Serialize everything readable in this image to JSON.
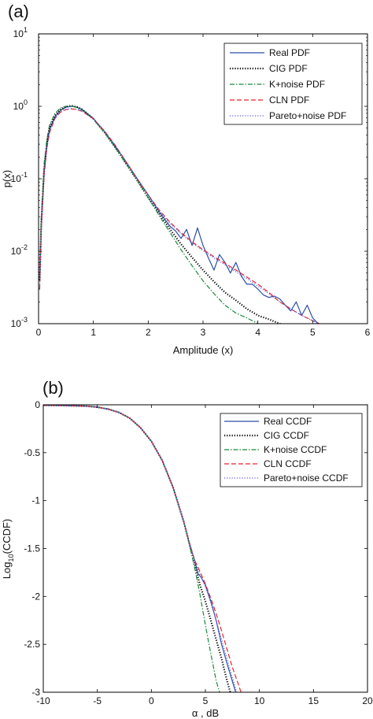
{
  "colors": {
    "real": "#2b4ea8",
    "cig": "#000000",
    "knoise": "#1a8a3a",
    "cln": "#e8232a",
    "pareto": "#5a5ee0"
  },
  "chart_data": [
    {
      "type": "line",
      "panel_label": "(a)",
      "xlabel": "Amplitude (x)",
      "ylabel": "p(x)",
      "xlim": [
        0,
        6
      ],
      "ylim": [
        0.001,
        10
      ],
      "yscale": "log",
      "grid": false,
      "legend_position": "top-right",
      "x_ticks": [
        0,
        1,
        2,
        3,
        4,
        5,
        6
      ],
      "x_tick_labels": [
        "0",
        "1",
        "2",
        "3",
        "4",
        "5",
        "6"
      ],
      "y_ticks": [
        0.001,
        0.01,
        0.1,
        1,
        10
      ],
      "y_tick_labels": [
        {
          "base": "10",
          "exp": "-3"
        },
        {
          "base": "10",
          "exp": "-2"
        },
        {
          "base": "10",
          "exp": "-1"
        },
        {
          "base": "10",
          "exp": "0"
        },
        {
          "base": "10",
          "exp": "1"
        }
      ],
      "series": [
        {
          "name": "Real PDF",
          "color": "#2b4ea8",
          "dash": "solid",
          "x": [
            0.02,
            0.05,
            0.1,
            0.15,
            0.2,
            0.3,
            0.4,
            0.5,
            0.6,
            0.7,
            0.8,
            1.0,
            1.2,
            1.4,
            1.6,
            1.8,
            2.0,
            2.2,
            2.4,
            2.5,
            2.6,
            2.7,
            2.8,
            2.9,
            3.0,
            3.1,
            3.2,
            3.3,
            3.4,
            3.5,
            3.6,
            3.7,
            3.8,
            3.9,
            4.0,
            4.1,
            4.2,
            4.3,
            4.4,
            4.5,
            4.6,
            4.7,
            4.8,
            4.9,
            5.0,
            5.1
          ],
          "y": [
            0.004,
            0.025,
            0.13,
            0.3,
            0.48,
            0.72,
            0.88,
            0.97,
            1.0,
            0.97,
            0.9,
            0.68,
            0.45,
            0.28,
            0.17,
            0.1,
            0.06,
            0.035,
            0.022,
            0.019,
            0.015,
            0.02,
            0.012,
            0.021,
            0.012,
            0.008,
            0.0055,
            0.009,
            0.007,
            0.005,
            0.007,
            0.0045,
            0.0035,
            0.0035,
            0.003,
            0.0025,
            0.0023,
            0.0024,
            0.0022,
            0.0018,
            0.0015,
            0.002,
            0.0013,
            0.0018,
            0.0012,
            0.001
          ]
        },
        {
          "name": "CIG PDF",
          "color": "#000000",
          "dash": "dotted",
          "x": [
            0.02,
            0.05,
            0.1,
            0.15,
            0.2,
            0.3,
            0.4,
            0.5,
            0.6,
            0.7,
            0.8,
            1.0,
            1.2,
            1.4,
            1.6,
            1.8,
            2.0,
            2.2,
            2.4,
            2.6,
            2.8,
            3.0,
            3.2,
            3.4,
            3.6,
            3.8,
            4.0,
            4.2,
            4.4,
            4.5
          ],
          "y": [
            0.004,
            0.025,
            0.13,
            0.3,
            0.5,
            0.75,
            0.9,
            0.99,
            1.02,
            0.98,
            0.9,
            0.67,
            0.44,
            0.27,
            0.16,
            0.095,
            0.055,
            0.033,
            0.02,
            0.0125,
            0.0082,
            0.0055,
            0.0038,
            0.0027,
            0.0021,
            0.0016,
            0.0013,
            0.00115,
            0.001,
            0.00095
          ]
        },
        {
          "name": "K+noise PDF",
          "color": "#1a8a3a",
          "dash": "dashdot",
          "x": [
            0.02,
            0.05,
            0.1,
            0.15,
            0.2,
            0.3,
            0.4,
            0.5,
            0.6,
            0.7,
            0.8,
            1.0,
            1.2,
            1.4,
            1.6,
            1.8,
            2.0,
            2.2,
            2.4,
            2.6,
            2.8,
            3.0,
            3.2,
            3.4,
            3.6,
            3.8,
            4.0,
            4.05
          ],
          "y": [
            0.005,
            0.03,
            0.16,
            0.35,
            0.55,
            0.8,
            0.95,
            1.0,
            1.01,
            0.96,
            0.88,
            0.66,
            0.44,
            0.27,
            0.16,
            0.095,
            0.055,
            0.031,
            0.018,
            0.0105,
            0.0063,
            0.0039,
            0.0026,
            0.0018,
            0.0014,
            0.0012,
            0.001,
            0.00095
          ]
        },
        {
          "name": "CLN PDF",
          "color": "#e8232a",
          "dash": "dashed",
          "x": [
            0.02,
            0.05,
            0.1,
            0.15,
            0.2,
            0.3,
            0.4,
            0.5,
            0.6,
            0.7,
            0.8,
            1.0,
            1.2,
            1.4,
            1.6,
            1.8,
            2.0,
            2.2,
            2.4,
            2.6,
            2.8,
            3.0,
            3.2,
            3.4,
            3.6,
            3.8,
            4.0,
            4.2,
            4.4,
            4.6,
            4.8,
            5.0,
            5.15
          ],
          "y": [
            0.003,
            0.02,
            0.11,
            0.26,
            0.43,
            0.68,
            0.83,
            0.9,
            0.92,
            0.9,
            0.85,
            0.67,
            0.46,
            0.29,
            0.17,
            0.1,
            0.06,
            0.037,
            0.025,
            0.018,
            0.0135,
            0.0105,
            0.0084,
            0.0068,
            0.0055,
            0.0044,
            0.0035,
            0.0027,
            0.002,
            0.0016,
            0.0013,
            0.0011,
            0.00098
          ]
        },
        {
          "name": "Pareto+noise PDF",
          "color": "#5a5ee0",
          "dash": "dotted",
          "x": [
            0.02,
            0.05,
            0.1,
            0.15,
            0.2,
            0.3,
            0.4,
            0.5,
            0.6,
            0.7,
            0.8,
            1.0,
            1.2,
            1.4,
            1.6,
            1.8,
            2.0,
            2.2,
            2.4,
            2.6,
            2.8,
            3.0,
            3.2,
            3.4,
            3.6,
            3.8,
            4.0,
            4.2,
            4.4,
            4.6,
            4.8,
            5.0,
            5.1
          ],
          "y": [
            0.003,
            0.02,
            0.11,
            0.27,
            0.44,
            0.69,
            0.84,
            0.91,
            0.93,
            0.91,
            0.86,
            0.67,
            0.46,
            0.29,
            0.17,
            0.1,
            0.06,
            0.036,
            0.024,
            0.0175,
            0.013,
            0.0102,
            0.0081,
            0.0065,
            0.0052,
            0.0042,
            0.0033,
            0.0026,
            0.002,
            0.0016,
            0.0013,
            0.0011,
            0.001
          ]
        }
      ]
    },
    {
      "type": "line",
      "panel_label": "(b)",
      "xlabel": "α , dB",
      "ylabel_base": "Log",
      "ylabel_sub": "10",
      "ylabel_rest": "(CCDF)",
      "xlim": [
        -10,
        20
      ],
      "ylim": [
        -3,
        0
      ],
      "grid": false,
      "legend_position": "top-right",
      "x_ticks": [
        -10,
        -5,
        0,
        5,
        10,
        15,
        20
      ],
      "x_tick_labels": [
        "-10",
        "-5",
        "0",
        "5",
        "10",
        "15",
        "20"
      ],
      "y_ticks": [
        0,
        -0.5,
        -1,
        -1.5,
        -2,
        -2.5,
        -3
      ],
      "y_tick_labels": [
        "0",
        "-0.5",
        "-1",
        "-1.5",
        "-2",
        "-2.5",
        "-3"
      ],
      "series": [
        {
          "name": "Real CCDF",
          "color": "#2b4ea8",
          "dash": "solid",
          "x": [
            -10,
            -8,
            -6,
            -5,
            -4,
            -3,
            -2,
            -1,
            0,
            1,
            2,
            3,
            3.5,
            4,
            4.3,
            4.6,
            5,
            5.5,
            6,
            6.5,
            7,
            7.4,
            7.8
          ],
          "y": [
            -0.005,
            -0.008,
            -0.015,
            -0.025,
            -0.045,
            -0.08,
            -0.14,
            -0.24,
            -0.38,
            -0.58,
            -0.86,
            -1.22,
            -1.44,
            -1.62,
            -1.76,
            -1.8,
            -1.88,
            -2.05,
            -2.25,
            -2.5,
            -2.7,
            -2.85,
            -3.0
          ]
        },
        {
          "name": "CIG CCDF",
          "color": "#000000",
          "dash": "dotted",
          "x": [
            -10,
            -8,
            -6,
            -5,
            -4,
            -3,
            -2,
            -1,
            0,
            1,
            2,
            3,
            3.5,
            4,
            4.5,
            5,
            5.5,
            6,
            6.5,
            7,
            7.3
          ],
          "y": [
            -0.005,
            -0.008,
            -0.015,
            -0.025,
            -0.045,
            -0.08,
            -0.14,
            -0.24,
            -0.38,
            -0.58,
            -0.86,
            -1.22,
            -1.44,
            -1.66,
            -1.88,
            -2.05,
            -2.25,
            -2.45,
            -2.65,
            -2.88,
            -3.0
          ]
        },
        {
          "name": "K+noise CCDF",
          "color": "#1a8a3a",
          "dash": "dashdot",
          "x": [
            -10,
            -8,
            -6,
            -5,
            -4,
            -3,
            -2,
            -1,
            0,
            1,
            2,
            3,
            3.5,
            4,
            4.5,
            5,
            5.5,
            6,
            6.3
          ],
          "y": [
            -0.004,
            -0.007,
            -0.013,
            -0.022,
            -0.042,
            -0.078,
            -0.14,
            -0.24,
            -0.38,
            -0.58,
            -0.86,
            -1.22,
            -1.45,
            -1.7,
            -1.98,
            -2.3,
            -2.6,
            -2.88,
            -3.0
          ]
        },
        {
          "name": "CLN CCDF",
          "color": "#e8232a",
          "dash": "dashed",
          "x": [
            -10,
            -8,
            -6,
            -5,
            -4,
            -3,
            -2,
            -1,
            0,
            1,
            2,
            3,
            3.5,
            4,
            4.5,
            5,
            5.5,
            6,
            6.5,
            7,
            7.5,
            8,
            8.3
          ],
          "y": [
            -0.005,
            -0.008,
            -0.015,
            -0.025,
            -0.045,
            -0.08,
            -0.14,
            -0.24,
            -0.38,
            -0.58,
            -0.86,
            -1.22,
            -1.43,
            -1.62,
            -1.74,
            -1.87,
            -2.02,
            -2.18,
            -2.36,
            -2.55,
            -2.74,
            -2.9,
            -3.0
          ]
        },
        {
          "name": "Pareto+noise CCDF",
          "color": "#5a5ee0",
          "dash": "dotted",
          "x": [
            -10,
            -8,
            -6,
            -5,
            -4,
            -3,
            -2,
            -1,
            0,
            1,
            2,
            3,
            3.5,
            4,
            4.5,
            5,
            5.5,
            6,
            6.5,
            7,
            7.5,
            7.9
          ],
          "y": [
            -0.005,
            -0.008,
            -0.015,
            -0.025,
            -0.045,
            -0.08,
            -0.14,
            -0.24,
            -0.38,
            -0.58,
            -0.86,
            -1.22,
            -1.43,
            -1.63,
            -1.77,
            -1.9,
            -2.07,
            -2.25,
            -2.45,
            -2.65,
            -2.85,
            -3.0
          ]
        }
      ]
    }
  ]
}
